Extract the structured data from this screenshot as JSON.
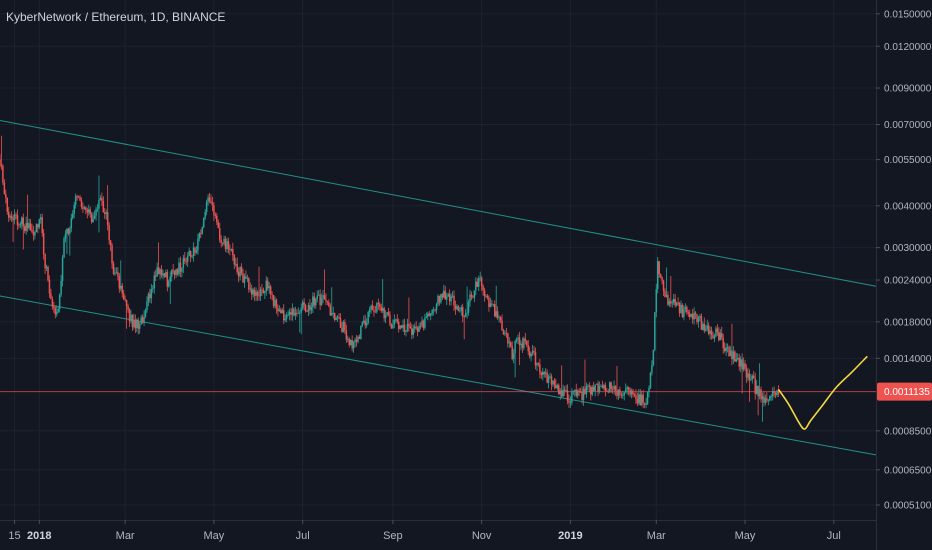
{
  "chart_data": {
    "type": "candlestick",
    "title": "KyberNetwork / Ethereum, 1D, BINANCE",
    "scale": "log",
    "grid": true,
    "colors": {
      "background": "#131722",
      "grid": "#1e2230",
      "up": "#26a69a",
      "down": "#ef5350",
      "channel": "#26a69a",
      "projection": "#f5d73f",
      "current_price": "#ef5350"
    },
    "y_axis": {
      "range": [
        0.00046,
        0.0165
      ],
      "ticks": [
        "0.0150000",
        "0.0120000",
        "0.0090000",
        "0.0070000",
        "0.0055000",
        "0.0040000",
        "0.0030000",
        "0.0024000",
        "0.0018000",
        "0.0014000",
        "0.0008500",
        "0.0006500",
        "0.0005100"
      ]
    },
    "x_axis": {
      "range": [
        "2017-12-05",
        "2019-07-30"
      ],
      "ticks": [
        {
          "date": "2017-12-15",
          "label": "15",
          "bold": false
        },
        {
          "date": "2018-01-01",
          "label": "2018",
          "bold": true
        },
        {
          "date": "2018-03-01",
          "label": "Mar",
          "bold": false
        },
        {
          "date": "2018-05-01",
          "label": "May",
          "bold": false
        },
        {
          "date": "2018-07-01",
          "label": "Jul",
          "bold": false
        },
        {
          "date": "2018-09-01",
          "label": "Sep",
          "bold": false
        },
        {
          "date": "2018-11-01",
          "label": "Nov",
          "bold": false
        },
        {
          "date": "2019-01-01",
          "label": "2019",
          "bold": true
        },
        {
          "date": "2019-03-01",
          "label": "Mar",
          "bold": false
        },
        {
          "date": "2019-05-01",
          "label": "May",
          "bold": false
        },
        {
          "date": "2019-07-01",
          "label": "Jul",
          "bold": false
        }
      ]
    },
    "current_price": {
      "value": 0.0011135,
      "label": "0.0011135"
    },
    "price_path": {
      "start": "2017-12-05",
      "end": "2019-05-24",
      "anchors": [
        [
          "2017-12-05",
          0.0055
        ],
        [
          "2017-12-10",
          0.0038
        ],
        [
          "2017-12-20",
          0.0036
        ],
        [
          "2017-12-28",
          0.0033
        ],
        [
          "2018-01-02",
          0.0037
        ],
        [
          "2018-01-05",
          0.0027
        ],
        [
          "2018-01-09",
          0.0021
        ],
        [
          "2018-01-14",
          0.0019
        ],
        [
          "2018-01-18",
          0.0032
        ],
        [
          "2018-01-23",
          0.0036
        ],
        [
          "2018-01-27",
          0.0044
        ],
        [
          "2018-02-02",
          0.0039
        ],
        [
          "2018-02-07",
          0.0036
        ],
        [
          "2018-02-12",
          0.0043
        ],
        [
          "2018-02-16",
          0.0037
        ],
        [
          "2018-02-21",
          0.0026
        ],
        [
          "2018-02-25",
          0.0023
        ],
        [
          "2018-03-03",
          0.0019
        ],
        [
          "2018-03-08",
          0.00175
        ],
        [
          "2018-03-13",
          0.0018
        ],
        [
          "2018-03-18",
          0.0022
        ],
        [
          "2018-03-24",
          0.0026
        ],
        [
          "2018-03-30",
          0.0024
        ],
        [
          "2018-04-06",
          0.0026
        ],
        [
          "2018-04-13",
          0.0028
        ],
        [
          "2018-04-20",
          0.0031
        ],
        [
          "2018-04-26",
          0.0041
        ],
        [
          "2018-05-01",
          0.0039
        ],
        [
          "2018-05-05",
          0.0031
        ],
        [
          "2018-05-10",
          0.0031
        ],
        [
          "2018-05-15",
          0.0027
        ],
        [
          "2018-05-22",
          0.0024
        ],
        [
          "2018-05-30",
          0.0022
        ],
        [
          "2018-06-06",
          0.0023
        ],
        [
          "2018-06-14",
          0.00195
        ],
        [
          "2018-06-21",
          0.00185
        ],
        [
          "2018-06-28",
          0.002
        ],
        [
          "2018-07-05",
          0.002
        ],
        [
          "2018-07-10",
          0.0021
        ],
        [
          "2018-07-14",
          0.0021
        ],
        [
          "2018-07-22",
          0.0019
        ],
        [
          "2018-07-30",
          0.0017
        ],
        [
          "2018-08-05",
          0.0015
        ],
        [
          "2018-08-10",
          0.0017
        ],
        [
          "2018-08-15",
          0.0019
        ],
        [
          "2018-08-22",
          0.002
        ],
        [
          "2018-08-30",
          0.0018
        ],
        [
          "2018-09-07",
          0.00175
        ],
        [
          "2018-09-15",
          0.0017
        ],
        [
          "2018-09-22",
          0.0018
        ],
        [
          "2018-09-29",
          0.002
        ],
        [
          "2018-10-05",
          0.0022
        ],
        [
          "2018-10-12",
          0.0021
        ],
        [
          "2018-10-20",
          0.0019
        ],
        [
          "2018-10-26",
          0.0022
        ],
        [
          "2018-10-30",
          0.0024
        ],
        [
          "2018-11-05",
          0.0021
        ],
        [
          "2018-11-10",
          0.00195
        ],
        [
          "2018-11-16",
          0.0017
        ],
        [
          "2018-11-22",
          0.00145
        ],
        [
          "2018-11-27",
          0.0016
        ],
        [
          "2018-12-03",
          0.0015
        ],
        [
          "2018-12-09",
          0.00135
        ],
        [
          "2018-12-15",
          0.00125
        ],
        [
          "2018-12-22",
          0.00115
        ],
        [
          "2018-12-28",
          0.00108
        ],
        [
          "2019-01-06",
          0.00108
        ],
        [
          "2019-01-15",
          0.00112
        ],
        [
          "2019-01-25",
          0.00115
        ],
        [
          "2019-02-05",
          0.00112
        ],
        [
          "2019-02-15",
          0.00108
        ],
        [
          "2019-02-22",
          0.00104
        ],
        [
          "2019-02-26",
          0.00128
        ],
        [
          "2019-03-02",
          0.0027
        ],
        [
          "2019-03-08",
          0.0021
        ],
        [
          "2019-03-15",
          0.002
        ],
        [
          "2019-03-22",
          0.0019
        ],
        [
          "2019-03-29",
          0.00185
        ],
        [
          "2019-04-05",
          0.0017
        ],
        [
          "2019-04-12",
          0.00165
        ],
        [
          "2019-04-20",
          0.00145
        ],
        [
          "2019-04-27",
          0.00135
        ],
        [
          "2019-05-04",
          0.00125
        ],
        [
          "2019-05-10",
          0.0011
        ],
        [
          "2019-05-14",
          0.00103
        ],
        [
          "2019-05-19",
          0.00108
        ],
        [
          "2019-05-24",
          0.00113
        ]
      ]
    },
    "channel_upper": {
      "from": [
        "2017-12-05",
        0.0072
      ],
      "to": [
        "2019-07-30",
        0.0023
      ]
    },
    "channel_lower": {
      "from": [
        "2017-12-05",
        0.00215
      ],
      "to": [
        "2019-07-30",
        0.00072
      ]
    },
    "projection": [
      [
        "2019-05-24",
        0.00113
      ],
      [
        "2019-05-31",
        0.00102
      ],
      [
        "2019-06-07",
        0.0009
      ],
      [
        "2019-06-11",
        0.00086
      ],
      [
        "2019-06-15",
        0.00091
      ],
      [
        "2019-06-23",
        0.00101
      ],
      [
        "2019-07-03",
        0.00115
      ],
      [
        "2019-07-14",
        0.00128
      ],
      [
        "2019-07-24",
        0.00142
      ]
    ]
  }
}
